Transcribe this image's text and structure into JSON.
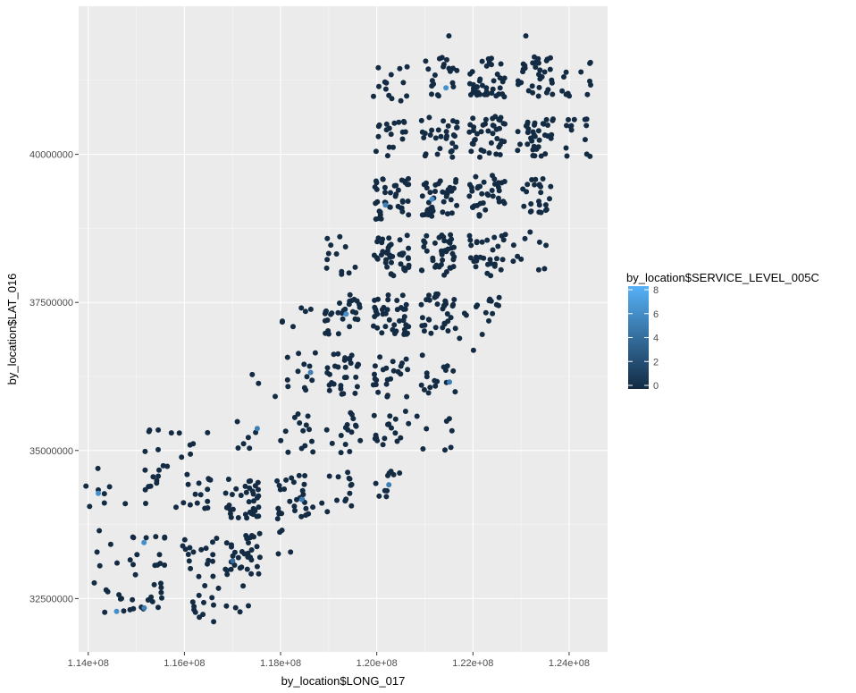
{
  "chart_data": {
    "type": "scatter",
    "title": "",
    "xlabel": "by_location$LONG_017",
    "ylabel": "by_location$LAT_016",
    "xlim": [
      113800000,
      124800000
    ],
    "ylim": [
      31600000,
      42500000
    ],
    "x_ticks": [
      114000000,
      116000000,
      118000000,
      120000000,
      122000000,
      124000000
    ],
    "x_tick_labels": [
      "1.14e+08",
      "1.16e+08",
      "1.18e+08",
      "1.20e+08",
      "1.22e+08",
      "1.24e+08"
    ],
    "y_ticks": [
      32500000,
      35000000,
      37500000,
      40000000
    ],
    "y_tick_labels": [
      "32500000",
      "35000000",
      "37500000",
      "40000000"
    ],
    "grid": true,
    "legend": {
      "title": "by_location$SERVICE_LEVEL_005C",
      "placement": "right",
      "min": 0,
      "max": 8,
      "ticks": [
        0,
        2,
        4,
        6,
        8
      ],
      "tick_labels": [
        "0",
        "2",
        "4",
        "6",
        "8"
      ],
      "color_low": "#132B43",
      "color_high": "#56B1F7"
    },
    "point_color_default": "#132B43",
    "clusters": [
      {
        "x": 114500000,
        "y": 32470000,
        "n": 8,
        "hi": 6
      },
      {
        "x": 115200000,
        "y": 32470000,
        "n": 14,
        "hi": 5
      },
      {
        "x": 116300000,
        "y": 32420000,
        "n": 12
      },
      {
        "x": 117000000,
        "y": 32450000,
        "n": 6
      },
      {
        "x": 114500000,
        "y": 33350000,
        "n": 6
      },
      {
        "x": 115300000,
        "y": 33250000,
        "n": 14,
        "hi": 6
      },
      {
        "x": 116300000,
        "y": 33200000,
        "n": 18
      },
      {
        "x": 117200000,
        "y": 33250000,
        "n": 34,
        "hi": 4
      },
      {
        "x": 118200000,
        "y": 33550000,
        "n": 6
      },
      {
        "x": 114400000,
        "y": 34400000,
        "n": 6
      },
      {
        "x": 114000000,
        "y": 34150000,
        "n": 2,
        "hi": 6
      },
      {
        "x": 115300000,
        "y": 34400000,
        "n": 12
      },
      {
        "x": 116200000,
        "y": 34300000,
        "n": 16
      },
      {
        "x": 117200000,
        "y": 34200000,
        "n": 36
      },
      {
        "x": 118300000,
        "y": 34250000,
        "n": 28,
        "hi": 5
      },
      {
        "x": 119200000,
        "y": 34300000,
        "n": 14
      },
      {
        "x": 120200000,
        "y": 34400000,
        "n": 10,
        "hi": 5
      },
      {
        "x": 115400000,
        "y": 35250000,
        "n": 6
      },
      {
        "x": 116200000,
        "y": 35200000,
        "n": 6
      },
      {
        "x": 117400000,
        "y": 35250000,
        "n": 6,
        "hi": 5
      },
      {
        "x": 118300000,
        "y": 35300000,
        "n": 14
      },
      {
        "x": 119300000,
        "y": 35300000,
        "n": 16
      },
      {
        "x": 120300000,
        "y": 35350000,
        "n": 18
      },
      {
        "x": 121200000,
        "y": 35350000,
        "n": 8
      },
      {
        "x": 117700000,
        "y": 36200000,
        "n": 3
      },
      {
        "x": 118400000,
        "y": 36300000,
        "n": 12,
        "hi": 5
      },
      {
        "x": 119300000,
        "y": 36300000,
        "n": 30
      },
      {
        "x": 120300000,
        "y": 36250000,
        "n": 24
      },
      {
        "x": 121300000,
        "y": 36300000,
        "n": 16,
        "hi": 5
      },
      {
        "x": 122000000,
        "y": 36600000,
        "n": 2
      },
      {
        "x": 118300000,
        "y": 37250000,
        "n": 6
      },
      {
        "x": 119300000,
        "y": 37300000,
        "n": 30,
        "hi": 6
      },
      {
        "x": 120300000,
        "y": 37300000,
        "n": 40
      },
      {
        "x": 121300000,
        "y": 37300000,
        "n": 34
      },
      {
        "x": 122200000,
        "y": 37300000,
        "n": 14
      },
      {
        "x": 119300000,
        "y": 38300000,
        "n": 12
      },
      {
        "x": 120300000,
        "y": 38300000,
        "n": 40
      },
      {
        "x": 121300000,
        "y": 38300000,
        "n": 40
      },
      {
        "x": 122300000,
        "y": 38300000,
        "n": 30
      },
      {
        "x": 123200000,
        "y": 38400000,
        "n": 10
      },
      {
        "x": 120300000,
        "y": 39250000,
        "n": 40,
        "hi": 5
      },
      {
        "x": 121300000,
        "y": 39250000,
        "n": 40,
        "hi": 6
      },
      {
        "x": 122300000,
        "y": 39300000,
        "n": 36
      },
      {
        "x": 123300000,
        "y": 39250000,
        "n": 24
      },
      {
        "x": 120300000,
        "y": 40250000,
        "n": 18
      },
      {
        "x": 121300000,
        "y": 40300000,
        "n": 30
      },
      {
        "x": 122300000,
        "y": 40300000,
        "n": 40
      },
      {
        "x": 123300000,
        "y": 40300000,
        "n": 36
      },
      {
        "x": 124200000,
        "y": 40300000,
        "n": 14
      },
      {
        "x": 120300000,
        "y": 41200000,
        "n": 14
      },
      {
        "x": 121300000,
        "y": 41300000,
        "n": 20,
        "hi": 6
      },
      {
        "x": 122300000,
        "y": 41300000,
        "n": 40
      },
      {
        "x": 123300000,
        "y": 41300000,
        "n": 34
      },
      {
        "x": 124200000,
        "y": 41250000,
        "n": 12
      },
      {
        "x": 121500000,
        "y": 42000000,
        "n": 1
      },
      {
        "x": 123100000,
        "y": 42000000,
        "n": 1
      }
    ]
  }
}
